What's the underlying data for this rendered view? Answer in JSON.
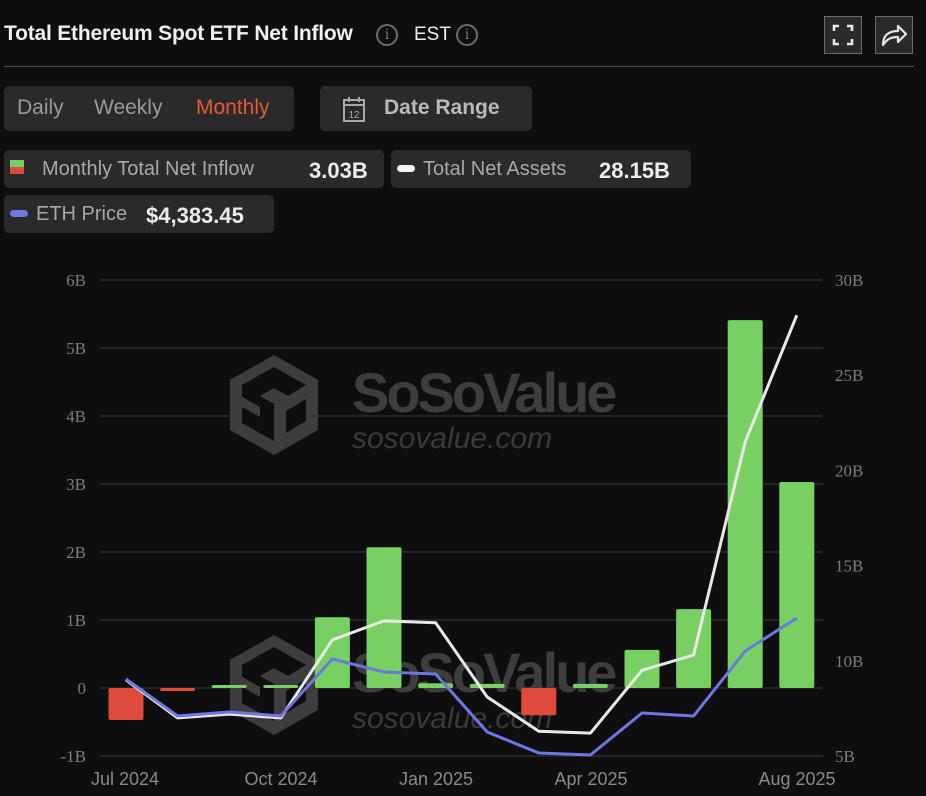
{
  "header": {
    "title": "Total Ethereum Spot ETF Net Inflow",
    "timezone": "EST",
    "info_glyph": "i",
    "fullscreen_icon": "fullscreen-icon",
    "share_icon": "share-icon"
  },
  "controls": {
    "periods": [
      {
        "label": "Daily",
        "active": false
      },
      {
        "label": "Weekly",
        "active": false
      },
      {
        "label": "Monthly",
        "active": true
      }
    ],
    "date_range_label": "Date Range",
    "calendar_day": "12"
  },
  "legend": {
    "inflow": {
      "label": "Monthly Total Net Inflow",
      "value": "3.03B"
    },
    "assets": {
      "label": "Total Net Assets",
      "value": "28.15B"
    },
    "price": {
      "label": "ETH Price",
      "value": "$4,383.45"
    }
  },
  "watermark": {
    "brand": "SoSoValue",
    "url": "sosovalue.com"
  },
  "colors": {
    "positive": "#78cf62",
    "negative": "#de4a3e",
    "assets_line": "#e8e8e8",
    "price_line": "#6a78e0",
    "active_tab": "#e15a35",
    "grid": "#333333",
    "axis_text": "#7c7c7c"
  },
  "chart_data": {
    "type": "bar",
    "title": "Total Ethereum Spot ETF Net Inflow",
    "categories": [
      "Jul 2024",
      "Aug 2024",
      "Sep 2024",
      "Oct 2024",
      "Nov 2024",
      "Dec 2024",
      "Jan 2025",
      "Feb 2025",
      "Mar 2025",
      "Apr 2025",
      "May 2025",
      "Jun 2025",
      "Jul 2025",
      "Aug 2025"
    ],
    "x_tick_labels": [
      "Jul 2024",
      "Oct 2024",
      "Jan 2025",
      "Apr 2025",
      "Aug 2025"
    ],
    "series": [
      {
        "name": "Monthly Total Net Inflow",
        "type": "bar",
        "axis": "left",
        "values": [
          -0.47,
          -0.04,
          0.03,
          0.0,
          1.04,
          2.07,
          0.07,
          0.06,
          -0.4,
          0.06,
          0.56,
          1.16,
          5.41,
          3.03
        ]
      },
      {
        "name": "Total Net Assets",
        "type": "line",
        "axis": "right",
        "values": [
          9.0,
          7.0,
          7.2,
          7.0,
          11.1,
          12.1,
          12.0,
          8.1,
          6.3,
          6.2,
          9.5,
          10.3,
          21.5,
          28.15
        ]
      },
      {
        "name": "ETH Price",
        "type": "line",
        "axis": "hidden",
        "values": [
          3233,
          2536,
          2611,
          2536,
          3610,
          3365,
          3327,
          2234,
          1838,
          1800,
          2592,
          2536,
          3761,
          4383.45
        ]
      }
    ],
    "left_axis": {
      "ticks": [
        "6B",
        "5B",
        "4B",
        "3B",
        "2B",
        "1B",
        "0",
        "-1B"
      ],
      "ylim": [
        -1,
        6
      ]
    },
    "right_axis": {
      "ticks": [
        "30B",
        "25B",
        "20B",
        "15B",
        "10B",
        "5B"
      ],
      "ylim": [
        5,
        30
      ]
    },
    "grid": true,
    "legend_position": "top"
  }
}
